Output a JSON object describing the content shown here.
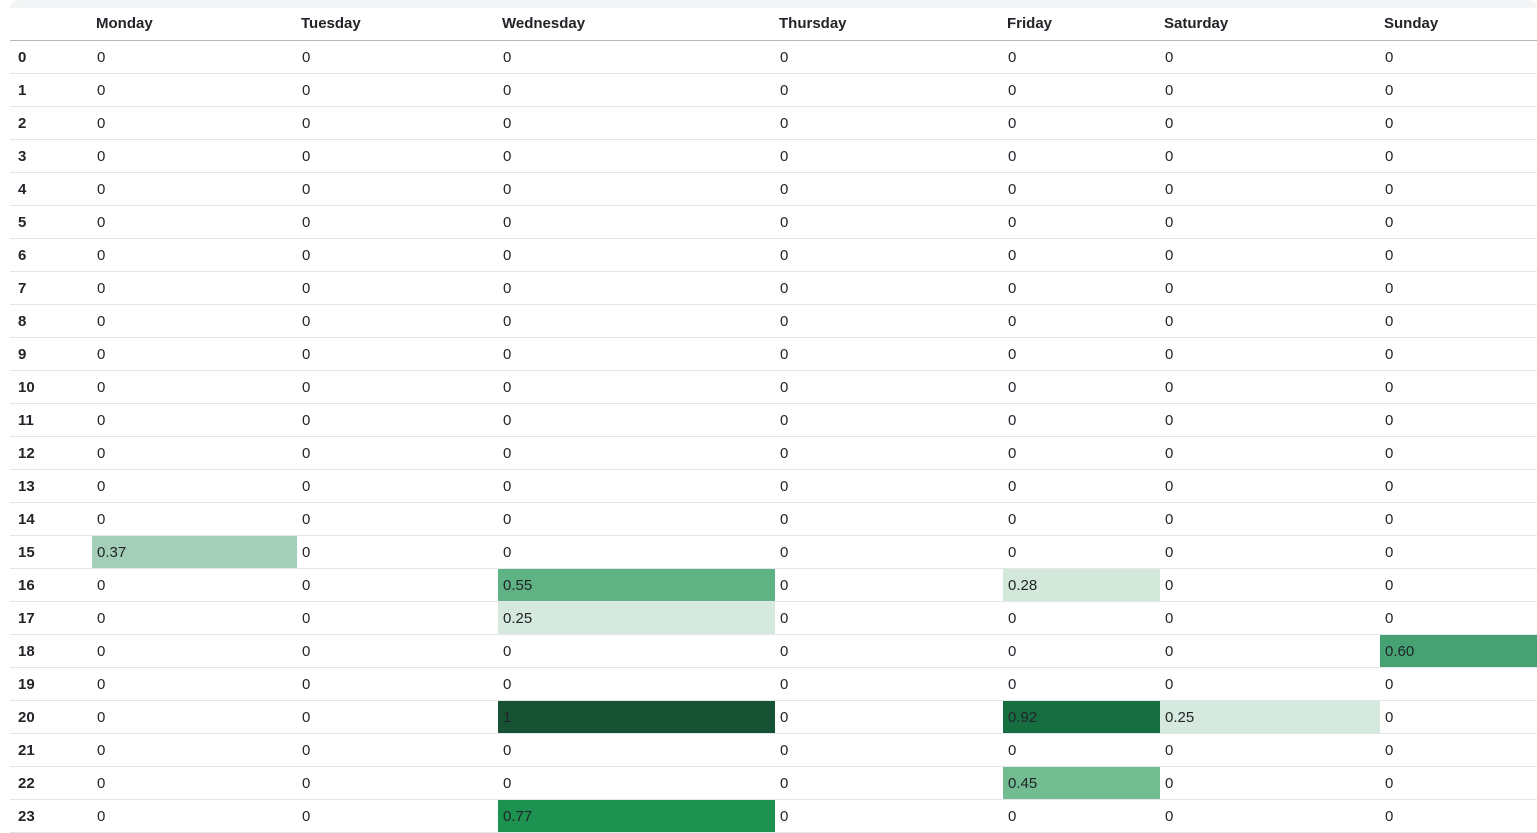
{
  "table": {
    "corner_label": "",
    "columns": [
      "Monday",
      "Tuesday",
      "Wednesday",
      "Thursday",
      "Friday",
      "Saturday",
      "Sunday"
    ],
    "rows": [
      {
        "hour": "0",
        "cells": [
          "0",
          "0",
          "0",
          "0",
          "0",
          "0",
          "0"
        ]
      },
      {
        "hour": "1",
        "cells": [
          "0",
          "0",
          "0",
          "0",
          "0",
          "0",
          "0"
        ]
      },
      {
        "hour": "2",
        "cells": [
          "0",
          "0",
          "0",
          "0",
          "0",
          "0",
          "0"
        ]
      },
      {
        "hour": "3",
        "cells": [
          "0",
          "0",
          "0",
          "0",
          "0",
          "0",
          "0"
        ]
      },
      {
        "hour": "4",
        "cells": [
          "0",
          "0",
          "0",
          "0",
          "0",
          "0",
          "0"
        ]
      },
      {
        "hour": "5",
        "cells": [
          "0",
          "0",
          "0",
          "0",
          "0",
          "0",
          "0"
        ]
      },
      {
        "hour": "6",
        "cells": [
          "0",
          "0",
          "0",
          "0",
          "0",
          "0",
          "0"
        ]
      },
      {
        "hour": "7",
        "cells": [
          "0",
          "0",
          "0",
          "0",
          "0",
          "0",
          "0"
        ]
      },
      {
        "hour": "8",
        "cells": [
          "0",
          "0",
          "0",
          "0",
          "0",
          "0",
          "0"
        ]
      },
      {
        "hour": "9",
        "cells": [
          "0",
          "0",
          "0",
          "0",
          "0",
          "0",
          "0"
        ]
      },
      {
        "hour": "10",
        "cells": [
          "0",
          "0",
          "0",
          "0",
          "0",
          "0",
          "0"
        ]
      },
      {
        "hour": "11",
        "cells": [
          "0",
          "0",
          "0",
          "0",
          "0",
          "0",
          "0"
        ]
      },
      {
        "hour": "12",
        "cells": [
          "0",
          "0",
          "0",
          "0",
          "0",
          "0",
          "0"
        ]
      },
      {
        "hour": "13",
        "cells": [
          "0",
          "0",
          "0",
          "0",
          "0",
          "0",
          "0"
        ]
      },
      {
        "hour": "14",
        "cells": [
          "0",
          "0",
          "0",
          "0",
          "0",
          "0",
          "0"
        ]
      },
      {
        "hour": "15",
        "cells": [
          {
            "v": "0.37",
            "bg": "#a3cfb8"
          },
          "0",
          "0",
          "0",
          "0",
          "0",
          "0"
        ]
      },
      {
        "hour": "16",
        "cells": [
          "0",
          "0",
          {
            "v": "0.55",
            "bg": "#5fb283"
          },
          "0",
          {
            "v": "0.28",
            "bg": "#d3e7db"
          },
          "0",
          "0"
        ]
      },
      {
        "hour": "17",
        "cells": [
          "0",
          "0",
          {
            "v": "0.25",
            "bg": "#d6e9de"
          },
          "0",
          "0",
          "0",
          "0"
        ]
      },
      {
        "hour": "18",
        "cells": [
          "0",
          "0",
          "0",
          "0",
          "0",
          "0",
          {
            "v": "0.60",
            "bg": "#47a273"
          }
        ]
      },
      {
        "hour": "19",
        "cells": [
          "0",
          "0",
          "0",
          "0",
          "0",
          "0",
          "0"
        ]
      },
      {
        "hour": "20",
        "cells": [
          "0",
          "0",
          {
            "v": "1",
            "bg": "#175235"
          },
          "0",
          {
            "v": "0.92",
            "bg": "#166e41"
          },
          {
            "v": "0.25",
            "bg": "#d6e9de"
          },
          "0"
        ]
      },
      {
        "hour": "21",
        "cells": [
          "0",
          "0",
          "0",
          "0",
          "0",
          "0",
          "0"
        ]
      },
      {
        "hour": "22",
        "cells": [
          "0",
          "0",
          "0",
          "0",
          {
            "v": "0.45",
            "bg": "#73bb91"
          },
          "0",
          "0"
        ]
      },
      {
        "hour": "23",
        "cells": [
          "0",
          "0",
          {
            "v": "0.77",
            "bg": "#1d9150"
          },
          "0",
          "0",
          "0",
          "0"
        ]
      }
    ]
  },
  "colors": {
    "heat_min": "#ffffff",
    "heat_low": "#d6e9de",
    "heat_mid": "#5fb283",
    "heat_high": "#1d9150",
    "heat_max": "#175235",
    "row_border": "#e4e7ea",
    "header_border": "#b2b8bd",
    "text": "#212529"
  },
  "chart_data": {
    "type": "heatmap",
    "title": "",
    "xlabel": "",
    "ylabel": "",
    "columns": [
      "Monday",
      "Tuesday",
      "Wednesday",
      "Thursday",
      "Friday",
      "Saturday",
      "Sunday"
    ],
    "row_labels": [
      "0",
      "1",
      "2",
      "3",
      "4",
      "5",
      "6",
      "7",
      "8",
      "9",
      "10",
      "11",
      "12",
      "13",
      "14",
      "15",
      "16",
      "17",
      "18",
      "19",
      "20",
      "21",
      "22",
      "23"
    ],
    "value_range": [
      0,
      1
    ],
    "values": [
      [
        0,
        0,
        0,
        0,
        0,
        0,
        0
      ],
      [
        0,
        0,
        0,
        0,
        0,
        0,
        0
      ],
      [
        0,
        0,
        0,
        0,
        0,
        0,
        0
      ],
      [
        0,
        0,
        0,
        0,
        0,
        0,
        0
      ],
      [
        0,
        0,
        0,
        0,
        0,
        0,
        0
      ],
      [
        0,
        0,
        0,
        0,
        0,
        0,
        0
      ],
      [
        0,
        0,
        0,
        0,
        0,
        0,
        0
      ],
      [
        0,
        0,
        0,
        0,
        0,
        0,
        0
      ],
      [
        0,
        0,
        0,
        0,
        0,
        0,
        0
      ],
      [
        0,
        0,
        0,
        0,
        0,
        0,
        0
      ],
      [
        0,
        0,
        0,
        0,
        0,
        0,
        0
      ],
      [
        0,
        0,
        0,
        0,
        0,
        0,
        0
      ],
      [
        0,
        0,
        0,
        0,
        0,
        0,
        0
      ],
      [
        0,
        0,
        0,
        0,
        0,
        0,
        0
      ],
      [
        0,
        0,
        0,
        0,
        0,
        0,
        0
      ],
      [
        0.37,
        0,
        0,
        0,
        0,
        0,
        0
      ],
      [
        0,
        0,
        0.55,
        0,
        0.28,
        0,
        0
      ],
      [
        0,
        0,
        0.25,
        0,
        0,
        0,
        0
      ],
      [
        0,
        0,
        0,
        0,
        0,
        0,
        0.6
      ],
      [
        0,
        0,
        0,
        0,
        0,
        0,
        0
      ],
      [
        0,
        0,
        1,
        0,
        0.92,
        0.25,
        0
      ],
      [
        0,
        0,
        0,
        0,
        0,
        0,
        0
      ],
      [
        0,
        0,
        0,
        0,
        0.45,
        0,
        0
      ],
      [
        0,
        0,
        0.77,
        0,
        0,
        0,
        0
      ]
    ]
  }
}
